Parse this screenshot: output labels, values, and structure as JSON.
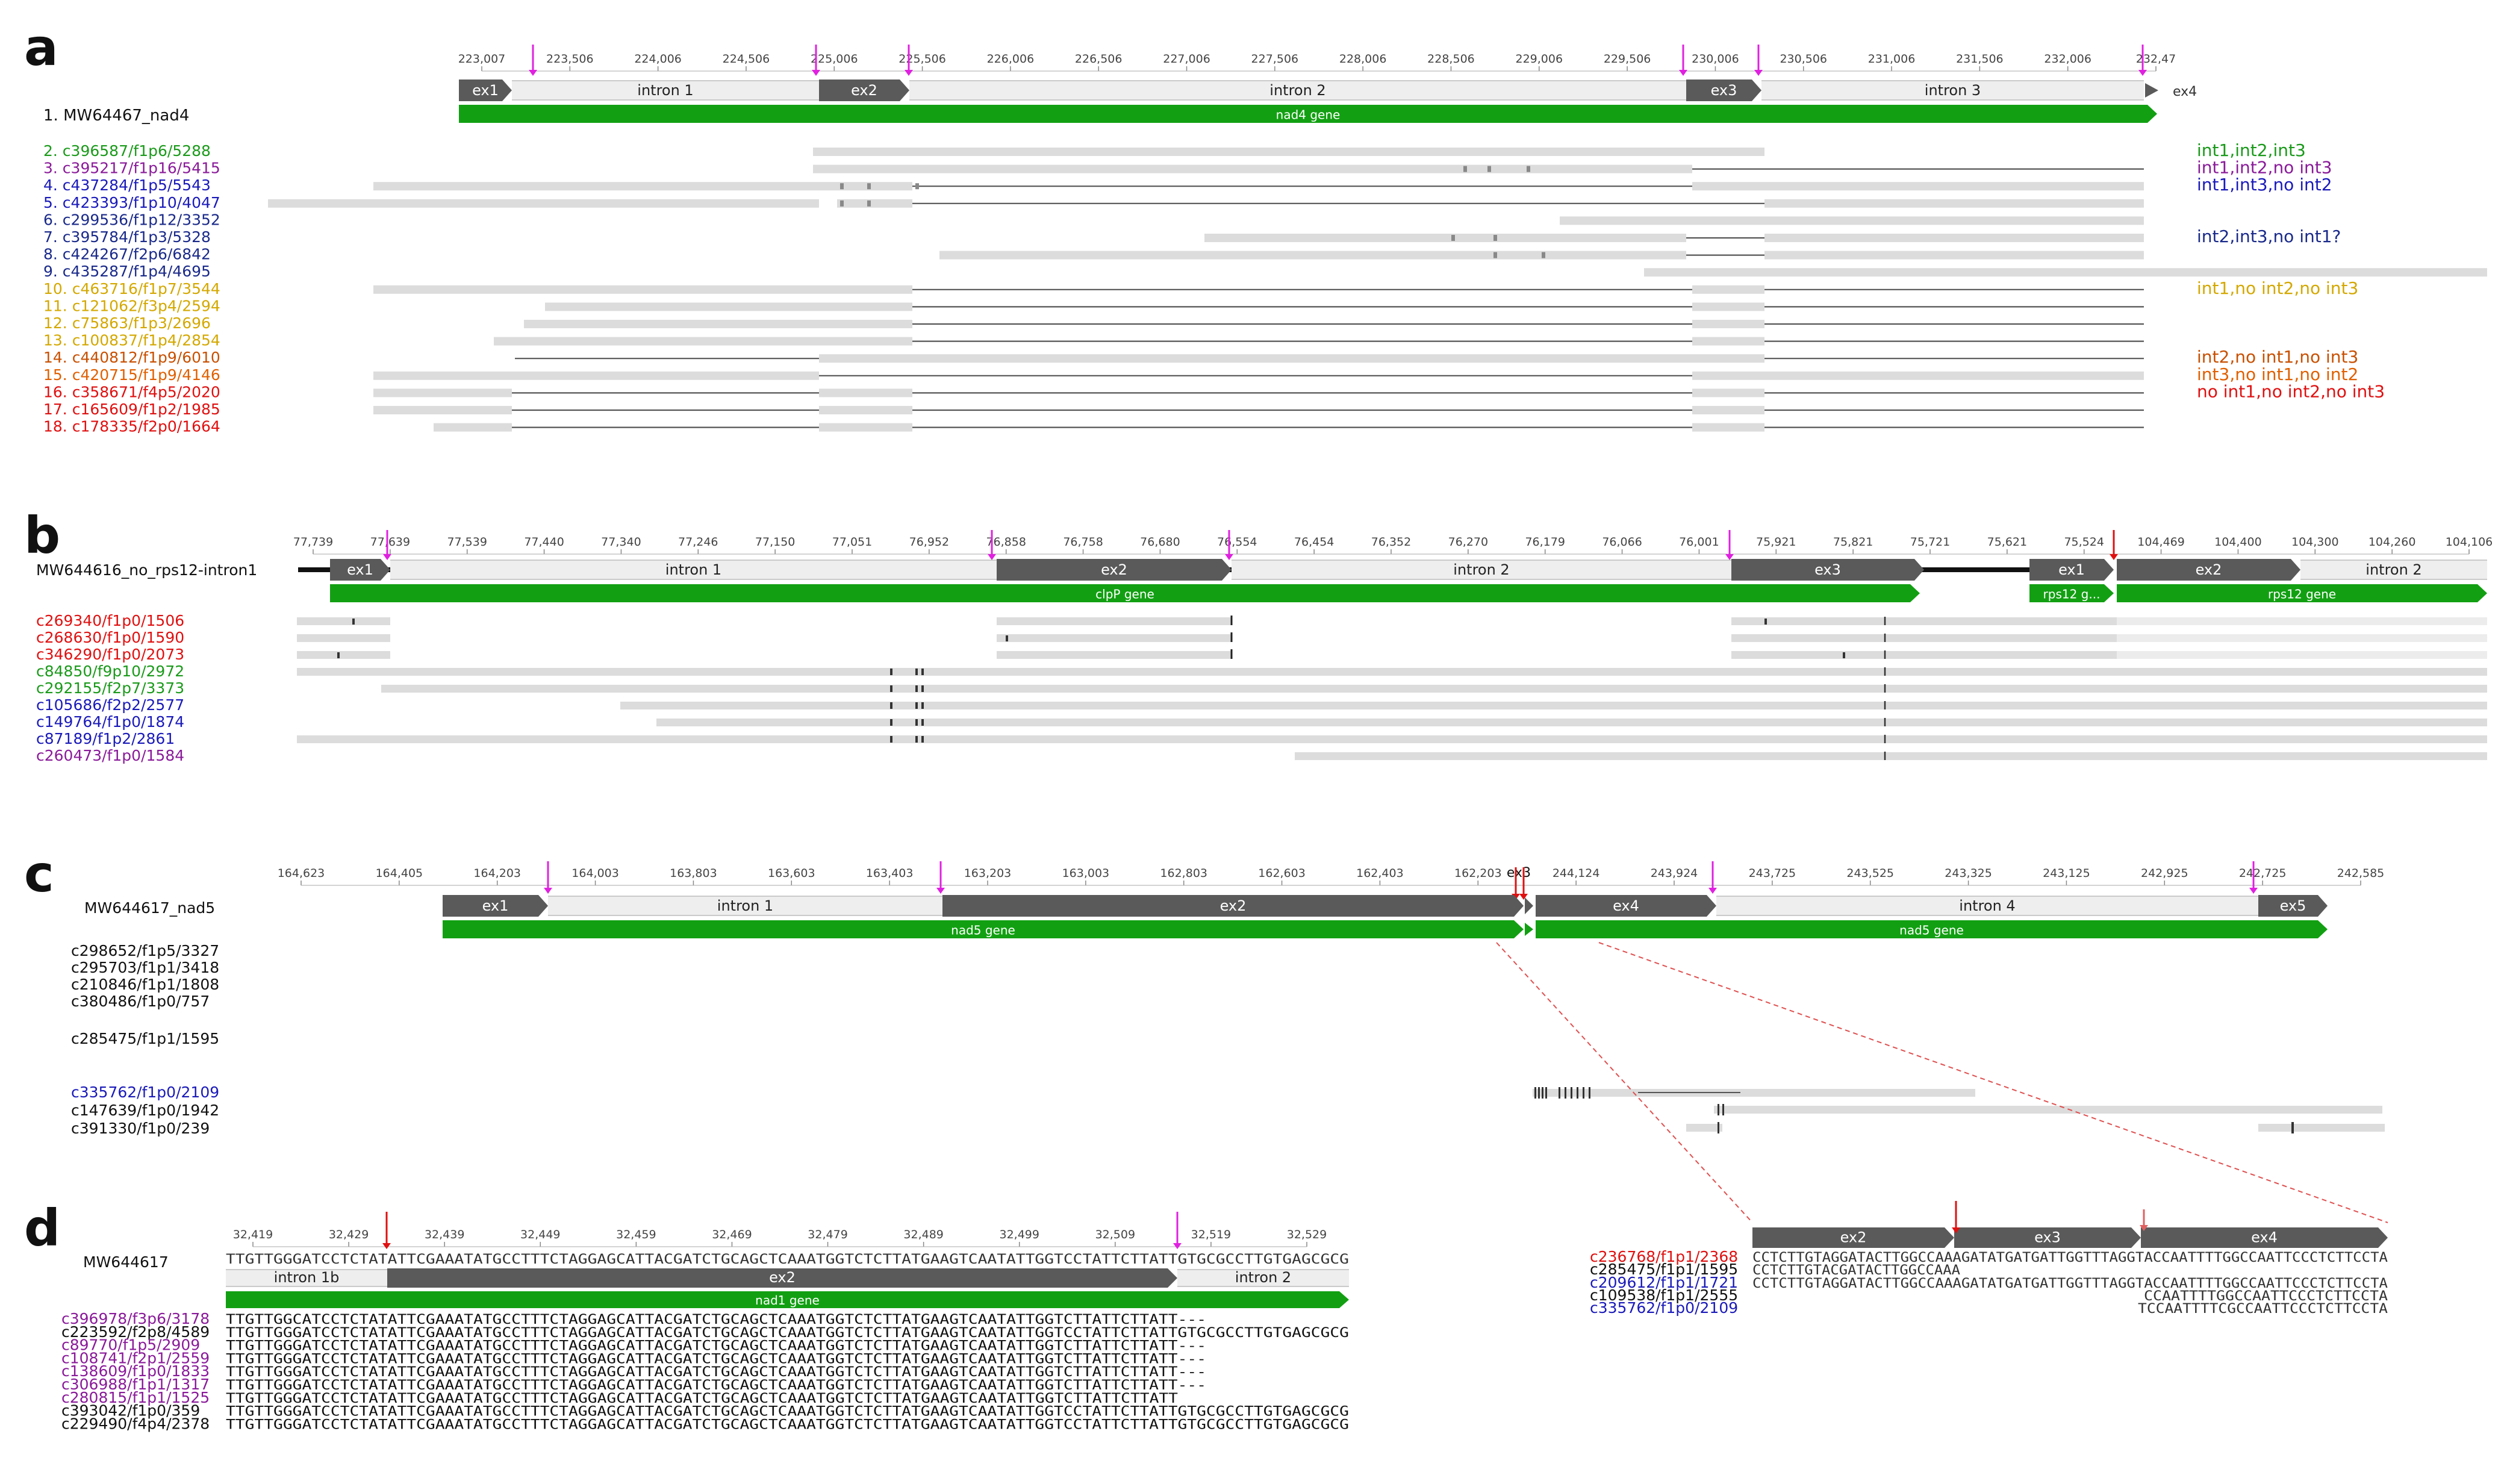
{
  "figure": {
    "panels": [
      {
        "letter": "a",
        "ref": "1. MW64467_nad4",
        "ticks": [
          "223,007",
          "223,506",
          "224,006",
          "224,506",
          "225,006",
          "225,506",
          "226,006",
          "226,506",
          "227,006",
          "227,506",
          "228,006",
          "228,506",
          "229,006",
          "229,506",
          "230,006",
          "230,506",
          "231,006",
          "231,506",
          "232,006",
          "232,47"
        ],
        "features": [
          "ex1",
          "intron 1",
          "ex2",
          "intron 2",
          "ex3",
          "intron 3",
          "ex4"
        ],
        "gene": "nad4 gene",
        "reads": [
          {
            "label": "2. c396587/f1p6/5288",
            "color": "#1a9a1a"
          },
          {
            "label": "3. c395217/f1p16/5415",
            "color": "#8a1a9a"
          },
          {
            "label": "4. c437284/f1p5/5543",
            "color": "#1a1aba"
          },
          {
            "label": "5. c423393/f1p10/4047",
            "color": "#1a1aba"
          },
          {
            "label": "6. c299536/f1p12/3352",
            "color": "#1a2a8a"
          },
          {
            "label": "7. c395784/f1p3/5328",
            "color": "#1a2a8a"
          },
          {
            "label": "8. c424267/f2p6/6842",
            "color": "#1a2a8a"
          },
          {
            "label": "9. c435287/f1p4/4695",
            "color": "#1a2a8a"
          },
          {
            "label": "10. c463716/f1p7/3544",
            "color": "#d4a800"
          },
          {
            "label": "11. c121062/f3p4/2594",
            "color": "#d4a800"
          },
          {
            "label": "12. c75863/f1p3/2696",
            "color": "#d4a800"
          },
          {
            "label": "13. c100837/f1p4/2854",
            "color": "#d4a800"
          },
          {
            "label": "14. c440812/f1p9/6010",
            "color": "#c85000"
          },
          {
            "label": "15. c420715/f1p9/4146",
            "color": "#e06000"
          },
          {
            "label": "16. c358671/f4p5/2020",
            "color": "#e01010"
          },
          {
            "label": "17. c165609/f1p2/1985",
            "color": "#e01010"
          },
          {
            "label": "18. c178335/f2p0/1664",
            "color": "#e01010"
          }
        ],
        "annotations": [
          {
            "text": "int1,int2,int3",
            "color": "#1a9a1a"
          },
          {
            "text": "int1,int2,no int3",
            "color": "#8a1a9a"
          },
          {
            "text": "int1,int3,no int2",
            "color": "#1a1aba"
          },
          {
            "text": "int2,int3,no int1?",
            "color": "#1a2a8a"
          },
          {
            "text": "int1,no int2,no int3",
            "color": "#d4a800"
          },
          {
            "text": "int2,no int1,no int3",
            "color": "#c85000"
          },
          {
            "text": "int3,no int1,no int2",
            "color": "#e06000"
          },
          {
            "text": "no int1,no int2,no int3",
            "color": "#e01010"
          }
        ]
      },
      {
        "letter": "b",
        "ref": "MW644616_no_rps12-intron1",
        "ticks": [
          "77,739",
          "77,639",
          "77,539",
          "77,440",
          "77,340",
          "77,246",
          "77,150",
          "77,051",
          "76,952",
          "76,858",
          "76,758",
          "76,680",
          "76,554",
          "76,454",
          "76,352",
          "76,270",
          "76,179",
          "76,066",
          "76,001",
          "75,921",
          "75,821",
          "75,721",
          "75,621",
          "75,524",
          "104,469",
          "104,400",
          "104,300",
          "104,260",
          "104,106"
        ],
        "features": [
          "ex1",
          "intron 1",
          "ex2",
          "intron 2",
          "ex3",
          "ex1",
          "ex2",
          "intron 2"
        ],
        "genes": [
          "clpP gene",
          "rps12 g...",
          "rps12 gene"
        ],
        "reads": [
          {
            "label": "c269340/f1p0/1506",
            "color": "#e01010"
          },
          {
            "label": "c268630/f1p0/1590",
            "color": "#e01010"
          },
          {
            "label": "c346290/f1p0/2073",
            "color": "#e01010"
          },
          {
            "label": "c84850/f9p10/2972",
            "color": "#1a9a1a"
          },
          {
            "label": "c292155/f2p7/3373",
            "color": "#1a9a1a"
          },
          {
            "label": "c105686/f2p2/2577",
            "color": "#1a1aba"
          },
          {
            "label": "c149764/f1p0/1874",
            "color": "#1a1aba"
          },
          {
            "label": "c87189/f1p2/2861",
            "color": "#1a1aba"
          },
          {
            "label": "c260473/f1p0/1584",
            "color": "#8a1a9a"
          }
        ]
      },
      {
        "letter": "c",
        "ref": "MW644617_nad5",
        "ticks": [
          "164,623",
          "164,405",
          "164,203",
          "164,003",
          "163,803",
          "163,603",
          "163,403",
          "163,203",
          "163,003",
          "162,803",
          "162,603",
          "162,403",
          "162,203",
          "244,124",
          "243,924",
          "243,725",
          "243,525",
          "243,325",
          "243,125",
          "242,925",
          "242,725",
          "242,585"
        ],
        "features": [
          "ex1",
          "intron 1",
          "ex2",
          "ex3",
          "ex4",
          "intron 4",
          "ex5"
        ],
        "genes": [
          "nad5 gene",
          "nad5 gene"
        ],
        "reads": [
          {
            "label": "c298652/f1p5/3327",
            "color": "#111111"
          },
          {
            "label": "c295703/f1p1/3418",
            "color": "#111111"
          },
          {
            "label": "c210846/f1p1/1808",
            "color": "#111111"
          },
          {
            "label": "c380486/f1p0/757",
            "color": "#111111"
          },
          {
            "label": "c285475/f1p1/1595",
            "color": "#111111"
          },
          {
            "label": "c335762/f1p0/2109",
            "color": "#1a1aba"
          },
          {
            "label": "c147639/f1p0/1942",
            "color": "#111111"
          },
          {
            "label": "c391330/f1p0/239",
            "color": "#111111"
          }
        ],
        "zoom": {
          "features": [
            "ex2",
            "ex3",
            "ex4"
          ],
          "reads": [
            {
              "label": "c236768/f1p1/2368",
              "color": "#e01010",
              "seq": "CCTCTTGTAGGATACTTGGCCAAAGATATGATGATTGGTTTAGGTACCAATTTTGGCCAATTCCCTCTTCCTA"
            },
            {
              "label": "c285475/f1p1/1595",
              "color": "#111111",
              "seq": "CCTCTTGTACGATACTTGGCCAAA"
            },
            {
              "label": "c209612/f1p1/1721",
              "color": "#1a1aba",
              "seq": "CCTCTTGTAGGATACTTGGCCAAAGATATGATGATTGGTTTAGGTACCAATTTTGGCCAATTCCCTCTTCCTA"
            },
            {
              "label": "c109538/f1p1/2555",
              "color": "#111111",
              "seq": "CCAATTTTGGCCAATTCCCTCTTCCTA"
            },
            {
              "label": "c335762/f1p0/2109",
              "color": "#1a1aba",
              "seq": "TCCAATTTTCGCCAATTCCCTCTTCCTA"
            }
          ]
        }
      },
      {
        "letter": "d",
        "ref": "MW644617",
        "ticks": [
          "32,419",
          "32,429",
          "32,439",
          "32,449",
          "32,459",
          "32,469",
          "32,479",
          "32,489",
          "32,499",
          "32,509",
          "32,519",
          "32,529"
        ],
        "ref_seq": "TTGTTGGGATCCTCTATATTCGAAATATGCCTTTCTAGGAGCATTACGATCTGCAGCTCAAATGGTCTCTTATGAAGTCAATATTGGTCCTATTCTTATTGTGCGCCTTGTGAGCGCG",
        "features": [
          "intron 1b",
          "ex2",
          "intron 2"
        ],
        "gene": "nad1 gene",
        "reads": [
          {
            "label": "c396978/f3p6/3178",
            "color": "#8a1a9a",
            "seq": "TTGTTGGCATCCTCTATATTCGAAATATGCCTTTCTAGGAGCATTACGATCTGCAGCTCAAATGGTCTCTTATGAAGTCAATATTGGTCTTATTCTTATT---"
          },
          {
            "label": "c223592/f2p8/4589",
            "color": "#111111",
            "seq": "TTGTTGGGATCCTCTATATTCGAAATATGCCTTTCTAGGAGCATTACGATCTGCAGCTCAAATGGTCTCTTATGAAGTCAATATTGGTCCTATTCTTATTGTGCGCCTTGTGAGCGCG"
          },
          {
            "label": "c89770/f1p5/2909",
            "color": "#8a1a9a",
            "seq": "TTGTTGGGATCCTCTATATTCGAAATATGCCTTTCTAGGAGCATTACGATCTGCAGCTCAAATGGTCTCTTATGAAGTCAATATTGGTCTTATTCTTATT---"
          },
          {
            "label": "c108741/f2p1/2559",
            "color": "#8a1a9a",
            "seq": "TTGTTGGGATCCTCTATATTCGAAATATGCCTTTCTAGGAGCATTACGATCTGCAGCTCAAATGGTCTCTTATGAAGTCAATATTGGTCTTATTCTTATT---"
          },
          {
            "label": "c138609/f1p0/1833",
            "color": "#8a1a9a",
            "seq": "TTGTTGGGATCCTCTATATTCGAAATATGCCTTTCTAGGAGCATTACGATCTGCAGCTCAAATGGTCTCTTATGAAGTCAATATTGGTCTTATTCTTATT---"
          },
          {
            "label": "c306988/f1p1/1317",
            "color": "#8a1a9a",
            "seq": "TTGTTGGGATCCTCTATATTCGAAATATGCCTTTCTAGGAGCATTACGATCTGCAGCTCAAATGGTCTCTTATGAAGTCAATATTGGTCTTATTCTTATT---"
          },
          {
            "label": "c280815/f1p1/1525",
            "color": "#8a1a9a",
            "seq": "TTGTTGGGATCCTCTATATTCGAAATATGCCTTTCTAGGAGCATTACGATCTGCAGCTCAAATGGTCTCTTATGAAGTCAATATTGGTCTTATTCTTATT"
          },
          {
            "label": "c393042/f1p0/359",
            "color": "#111111",
            "seq": "TTGTTGGGATCCTCTATATTCGAAATATGCCTTTCTAGGAGCATTACGATCTGCAGCTCAAATGGTCTCTTATGAAGTCAATATTGGTCCTATTCTTATTGTGCGCCTTGTGAGCGCG"
          },
          {
            "label": "c229490/f4p4/2378",
            "color": "#111111",
            "seq": "TTGTTGGGATCCTCTATATTCGAAATATGCCTTTCTAGGAGCATTACGATCTGCAGCTCAAATGGTCTCTTATGAAGTCAATATTGGTCCTATTCTTATTGTGCGCCTTGTGAGCGCG"
          }
        ]
      }
    ]
  }
}
